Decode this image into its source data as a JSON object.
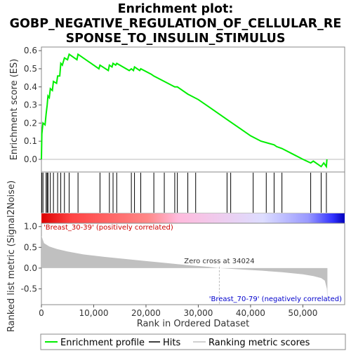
{
  "title_lines": [
    "Enrichment plot:",
    "GOBP_NEGATIVE_REGULATION_OF_CELLULAR_RE",
    "SPONSE_TO_INSULIN_STIMULUS"
  ],
  "chart_data": {
    "type": "line",
    "x_axis": {
      "label": "Rank in Ordered Dataset",
      "range": [
        0,
        58000
      ],
      "ticks": [
        0,
        10000,
        20000,
        30000,
        40000,
        50000
      ],
      "tick_labels": [
        "0",
        "10,000",
        "20,000",
        "30,000",
        "40,000",
        "50,000"
      ]
    },
    "es_panel": {
      "ylabel": "Enrichment score (ES)",
      "ylim": [
        -0.07,
        0.62
      ],
      "yticks": [
        0.0,
        0.1,
        0.2,
        0.3,
        0.4,
        0.5,
        0.6
      ],
      "ytick_labels": [
        "0.0",
        "0.1",
        "0.2",
        "0.3",
        "0.4",
        "0.5",
        "0.6"
      ],
      "series": [
        {
          "name": "Enrichment profile",
          "color": "#00ee00",
          "points": [
            [
              0,
              0.0
            ],
            [
              80,
              0.14
            ],
            [
              300,
              0.2
            ],
            [
              700,
              0.19
            ],
            [
              900,
              0.25
            ],
            [
              1100,
              0.3
            ],
            [
              1250,
              0.35
            ],
            [
              1500,
              0.34
            ],
            [
              1700,
              0.39
            ],
            [
              2100,
              0.38
            ],
            [
              2300,
              0.43
            ],
            [
              2900,
              0.42
            ],
            [
              3100,
              0.46
            ],
            [
              3500,
              0.46
            ],
            [
              3700,
              0.53
            ],
            [
              4000,
              0.52
            ],
            [
              4400,
              0.56
            ],
            [
              5000,
              0.55
            ],
            [
              5300,
              0.58
            ],
            [
              6800,
              0.55
            ],
            [
              7000,
              0.58
            ],
            [
              11000,
              0.5
            ],
            [
              11200,
              0.52
            ],
            [
              12800,
              0.49
            ],
            [
              13000,
              0.52
            ],
            [
              13500,
              0.51
            ],
            [
              13700,
              0.53
            ],
            [
              14200,
              0.52
            ],
            [
              14400,
              0.53
            ],
            [
              16800,
              0.49
            ],
            [
              17200,
              0.5
            ],
            [
              17600,
              0.49
            ],
            [
              17800,
              0.51
            ],
            [
              18800,
              0.49
            ],
            [
              19000,
              0.5
            ],
            [
              21000,
              0.47
            ],
            [
              21500,
              0.46
            ],
            [
              23500,
              0.43
            ],
            [
              25500,
              0.4
            ],
            [
              26000,
              0.4
            ],
            [
              28000,
              0.36
            ],
            [
              30000,
              0.33
            ],
            [
              32000,
              0.29
            ],
            [
              34000,
              0.25
            ],
            [
              36000,
              0.21
            ],
            [
              38000,
              0.17
            ],
            [
              40000,
              0.13
            ],
            [
              42000,
              0.1
            ],
            [
              44500,
              0.08
            ],
            [
              45000,
              0.07
            ],
            [
              46000,
              0.06
            ],
            [
              48000,
              0.03
            ],
            [
              50000,
              0.0
            ],
            [
              51500,
              -0.02
            ],
            [
              52000,
              -0.01
            ],
            [
              53500,
              -0.04
            ],
            [
              54000,
              -0.02
            ],
            [
              54500,
              -0.04
            ],
            [
              54600,
              0.0
            ]
          ]
        }
      ]
    },
    "hits": {
      "name": "Hits",
      "color": "#000000",
      "ranks": [
        80,
        300,
        900,
        1100,
        1250,
        1700,
        2300,
        3100,
        3700,
        4400,
        5300,
        7000,
        11200,
        13000,
        13700,
        14400,
        17200,
        17800,
        19000,
        21500,
        23500,
        25500,
        26000,
        28000,
        29500,
        35500,
        36200,
        40500,
        43000,
        44500,
        46000,
        51500,
        53500,
        54500
      ]
    },
    "rank_bar": {
      "gradient_colors": [
        "#dd0000",
        "#ff4444",
        "#ff8888",
        "#ffbbdd",
        "#ddddff",
        "#9999ff",
        "#3333ff",
        "#0000bb"
      ],
      "gradient_stops": [
        0,
        0.1,
        0.35,
        0.45,
        0.73,
        0.88,
        0.96,
        1.0
      ]
    },
    "ranked_metric": {
      "name": "Ranking metric scores",
      "ylabel": "Ranked list metric (Signal2Noise)",
      "ylim": [
        -0.88,
        1.08
      ],
      "yticks": [
        -0.5,
        0.0,
        0.5,
        1.0
      ],
      "ytick_labels": [
        "-0.5",
        "0.0",
        "0.5",
        "1.0"
      ],
      "color": "#c0c0c0",
      "points": [
        [
          0,
          0.78
        ],
        [
          500,
          0.6
        ],
        [
          1500,
          0.52
        ],
        [
          3000,
          0.46
        ],
        [
          5000,
          0.4
        ],
        [
          8000,
          0.33
        ],
        [
          12000,
          0.27
        ],
        [
          16000,
          0.22
        ],
        [
          20000,
          0.17
        ],
        [
          24000,
          0.12
        ],
        [
          28000,
          0.07
        ],
        [
          32000,
          0.03
        ],
        [
          34024,
          0.0
        ],
        [
          38000,
          -0.03
        ],
        [
          42000,
          -0.06
        ],
        [
          46000,
          -0.1
        ],
        [
          50000,
          -0.15
        ],
        [
          52000,
          -0.19
        ],
        [
          53500,
          -0.24
        ],
        [
          54200,
          -0.3
        ],
        [
          54600,
          -0.5
        ],
        [
          54700,
          -0.83
        ]
      ],
      "zero_cross_label": "Zero cross at 34024",
      "zero_cross_rank": 34024,
      "pos_label": "'Breast_30-39' (positively correlated)",
      "neg_label": "'Breast_70-79' (negatively correlated)"
    },
    "legend": [
      {
        "label": "Enrichment profile",
        "color": "#00ee00"
      },
      {
        "label": "Hits",
        "color": "#000000"
      },
      {
        "label": "Ranking metric scores",
        "color": "#c0c0c0"
      }
    ]
  }
}
